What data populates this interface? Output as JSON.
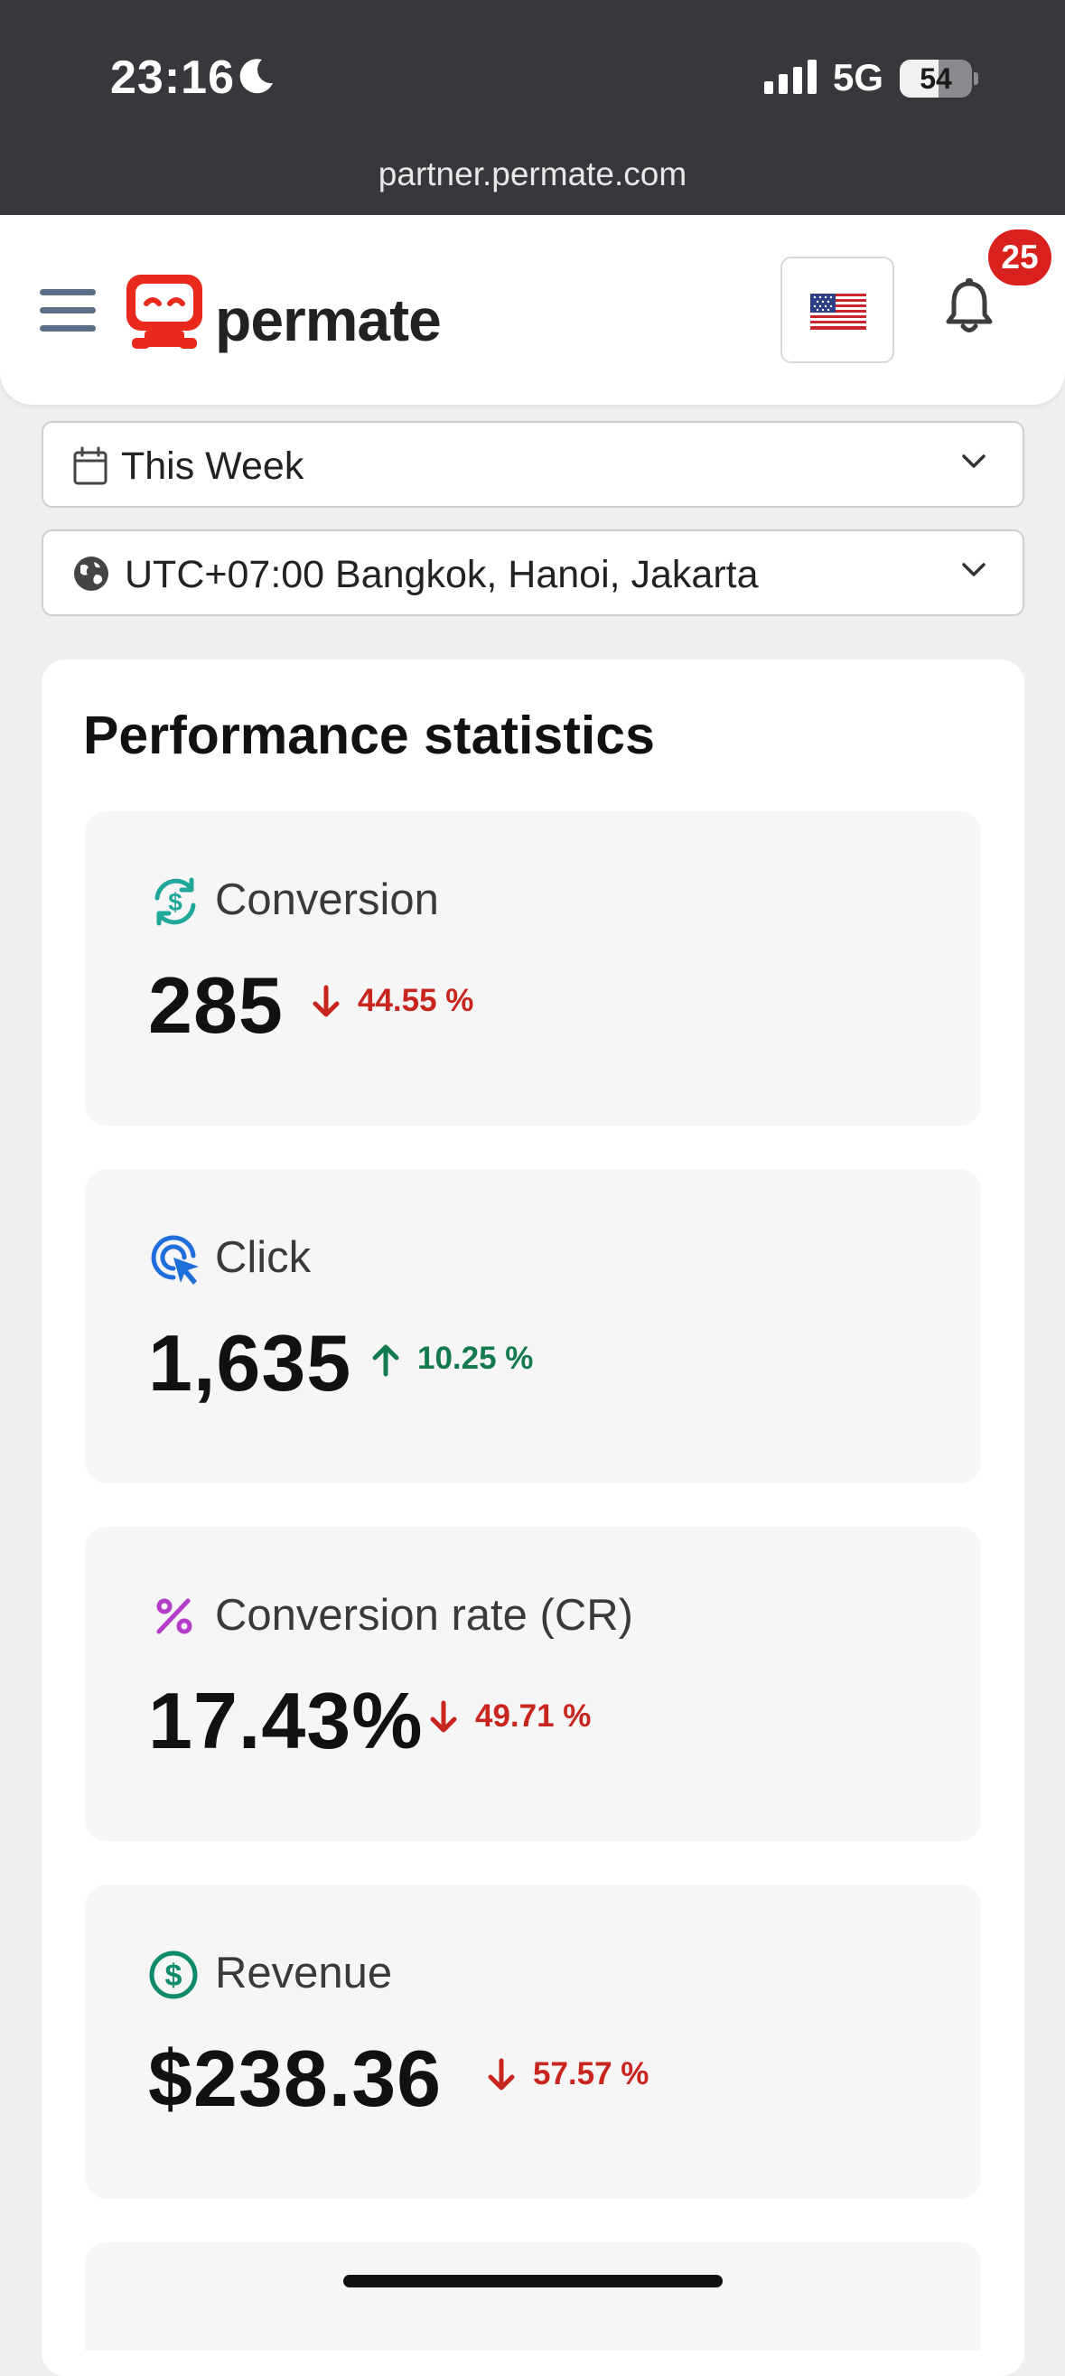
{
  "status_bar": {
    "time": "23:16",
    "network": "5G",
    "battery": "54",
    "battery_level": 0.54,
    "url": "partner.permate.com"
  },
  "header": {
    "logo_text": "permate",
    "language_flag": "us-flag-icon",
    "notification_count": "25",
    "brand_color": "#e8291c"
  },
  "filters": {
    "date_range": "This Week",
    "timezone": "UTC+07:00 Bangkok, Hanoi, Jakarta"
  },
  "performance": {
    "title": "Performance statistics",
    "stats": [
      {
        "key": "conversion",
        "icon": "conversion-icon",
        "label": "Conversion",
        "value": "285",
        "delta": "44.55 %",
        "direction": "down"
      },
      {
        "key": "click",
        "icon": "click-icon",
        "label": "Click",
        "value": "1,635",
        "delta": "10.25 %",
        "direction": "up"
      },
      {
        "key": "cr",
        "icon": "percent-icon",
        "label": "Conversion rate (CR)",
        "value": "17.43%",
        "delta": "49.71 %",
        "direction": "down"
      },
      {
        "key": "revenue",
        "icon": "dollar-icon",
        "label": "Revenue",
        "value": "$238.36",
        "delta": "57.57 %",
        "direction": "down"
      }
    ]
  },
  "colors": {
    "down": "#c8251f",
    "up": "#137a4d",
    "conversion_icon": "#1fa79a",
    "click_icon": "#1e6fd9",
    "percent_icon": "#b33cc9",
    "revenue_icon": "#0f8a6a"
  }
}
